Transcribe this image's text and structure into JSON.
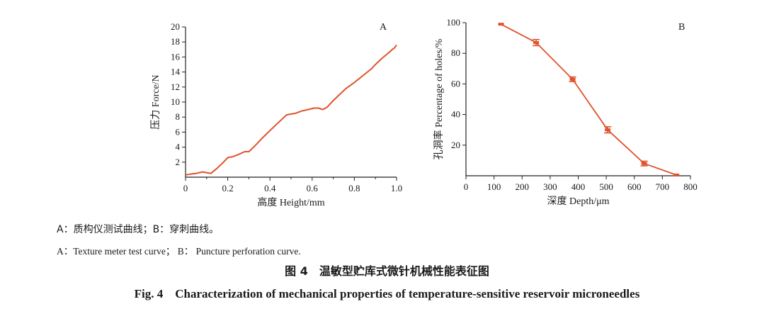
{
  "chart_data": [
    {
      "type": "line",
      "panel_label": "A",
      "title": "",
      "xlabel": "高度 Height/mm",
      "ylabel": "压力 Force/N",
      "xlim": [
        0,
        1.0
      ],
      "ylim": [
        0,
        20
      ],
      "x_ticks": [
        "0",
        "0.2",
        "0.4",
        "0.6",
        "0.8",
        "1.0"
      ],
      "x_tick_values": [
        0,
        0.2,
        0.4,
        0.6,
        0.8,
        1.0
      ],
      "y_ticks": [
        "2",
        "4",
        "6",
        "8",
        "10",
        "12",
        "14",
        "16",
        "18",
        "20"
      ],
      "y_tick_values": [
        2,
        4,
        6,
        8,
        10,
        12,
        14,
        16,
        18,
        20
      ],
      "color": "#e0522c",
      "series": [
        {
          "name": "Texture meter test curve",
          "x": [
            0.0,
            0.02,
            0.05,
            0.08,
            0.1,
            0.12,
            0.15,
            0.18,
            0.2,
            0.22,
            0.25,
            0.28,
            0.3,
            0.33,
            0.36,
            0.4,
            0.43,
            0.46,
            0.48,
            0.52,
            0.55,
            0.58,
            0.61,
            0.63,
            0.65,
            0.67,
            0.7,
            0.73,
            0.76,
            0.8,
            0.84,
            0.88,
            0.9,
            0.93,
            0.96,
            0.98,
            0.99,
            1.0
          ],
          "y": [
            0.3,
            0.4,
            0.5,
            0.7,
            0.6,
            0.5,
            1.2,
            2.0,
            2.6,
            2.7,
            3.0,
            3.4,
            3.4,
            4.2,
            5.1,
            6.2,
            7.0,
            7.8,
            8.3,
            8.5,
            8.8,
            9.0,
            9.2,
            9.2,
            9.0,
            9.3,
            10.2,
            11.0,
            11.8,
            12.6,
            13.5,
            14.4,
            15.0,
            15.8,
            16.5,
            17.0,
            17.2,
            17.6
          ]
        }
      ]
    },
    {
      "type": "line",
      "panel_label": "B",
      "title": "",
      "xlabel": "深度 Depth/μm",
      "ylabel": "孔洞率 Percentage of holes/%",
      "xlim": [
        0,
        800
      ],
      "ylim": [
        0,
        100
      ],
      "x_ticks": [
        "0",
        "100",
        "200",
        "300",
        "400",
        "500",
        "600",
        "700",
        "800"
      ],
      "x_tick_values": [
        0,
        100,
        200,
        300,
        400,
        500,
        600,
        700,
        800
      ],
      "y_ticks": [
        "20",
        "40",
        "60",
        "80",
        "100"
      ],
      "y_tick_values": [
        20,
        40,
        60,
        80,
        100
      ],
      "color": "#e0522c",
      "series": [
        {
          "name": "Puncture perforation curve",
          "x": [
            125,
            250,
            380,
            505,
            635,
            750
          ],
          "y": [
            99,
            87,
            63,
            30,
            8,
            0.5
          ],
          "error": [
            0,
            2,
            1.5,
            2,
            1.5,
            0
          ]
        }
      ]
    }
  ],
  "captions": {
    "cn_sub": "A：质构仪测试曲线；B：穿刺曲线。",
    "en_sub": "A：Texture meter test curve；  B： Puncture perforation curve.",
    "cn_title": "图 4　温敏型贮库式微针机械性能表征图",
    "en_title": "Fig. 4　Characterization of mechanical properties of temperature-sensitive reservoir microneedles"
  }
}
